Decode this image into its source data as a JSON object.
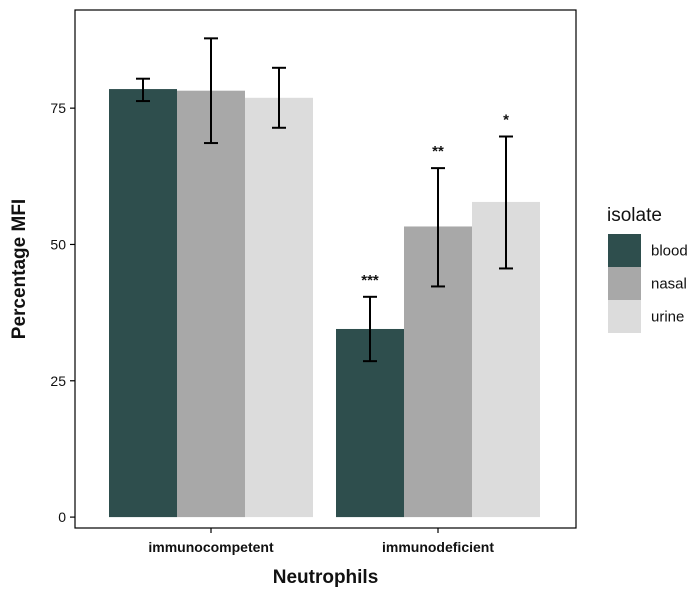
{
  "chart_data": {
    "type": "bar",
    "xlabel": "Neutrophils",
    "ylabel": "Percentage MFI",
    "categories": [
      "immunocompetent",
      "immunodeficient"
    ],
    "ylim": [
      -2,
      93
    ],
    "yticks": [
      0,
      25,
      50,
      75
    ],
    "ytick_labels": [
      "0",
      "25",
      "50",
      "75"
    ],
    "grid": false,
    "legend": {
      "title": "isolate",
      "placement": "right"
    },
    "series": [
      {
        "name": "blood",
        "color": "#2e4e4d",
        "values": [
          78.5,
          34.5
        ],
        "error_low": [
          76.3,
          28.6
        ],
        "error_high": [
          80.4,
          40.4
        ],
        "annotations": [
          "",
          "***"
        ]
      },
      {
        "name": "nasal",
        "color": "#a8a8a8",
        "values": [
          78.2,
          53.3
        ],
        "error_low": [
          68.6,
          42.3
        ],
        "error_high": [
          87.8,
          64.0
        ],
        "annotations": [
          "",
          "**"
        ]
      },
      {
        "name": "urine",
        "color": "#dcdcdc",
        "values": [
          76.9,
          57.8
        ],
        "error_low": [
          71.4,
          45.6
        ],
        "error_high": [
          82.4,
          69.8
        ],
        "annotations": [
          "",
          "*"
        ]
      }
    ]
  }
}
